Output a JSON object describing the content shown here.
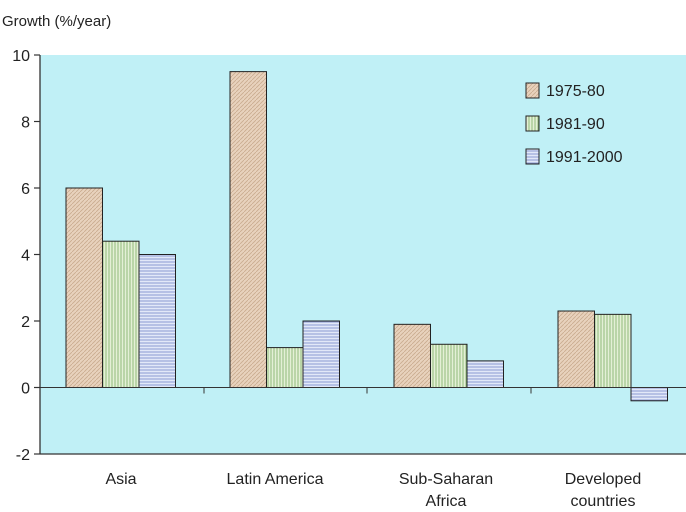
{
  "chart_data": {
    "type": "bar",
    "title": "",
    "ylabel": "Growth (%/year)",
    "xlabel": "",
    "ylim": [
      -2,
      10
    ],
    "yticks": [
      -2,
      0,
      2,
      4,
      6,
      8,
      10
    ],
    "grid": false,
    "legend_position": "top-right",
    "categories": [
      [
        "Asia"
      ],
      [
        "Latin America"
      ],
      [
        "Sub-Saharan",
        "Africa"
      ],
      [
        "Developed",
        "countries"
      ]
    ],
    "series": [
      {
        "name": "1975-80",
        "values": [
          6.0,
          9.5,
          1.9,
          2.3
        ],
        "color": "#e8d2bd",
        "pattern": "diagonal"
      },
      {
        "name": "1981-90",
        "values": [
          4.4,
          1.2,
          1.3,
          2.2
        ],
        "color": "#d3e6c0",
        "pattern": "vertical"
      },
      {
        "name": "1991-2000",
        "values": [
          4.0,
          2.0,
          0.8,
          -0.4
        ],
        "color": "#c9d3ee",
        "pattern": "horizontal"
      }
    ],
    "colors": {
      "plot_background": "#c0f0f6",
      "axis": "#333333"
    }
  }
}
